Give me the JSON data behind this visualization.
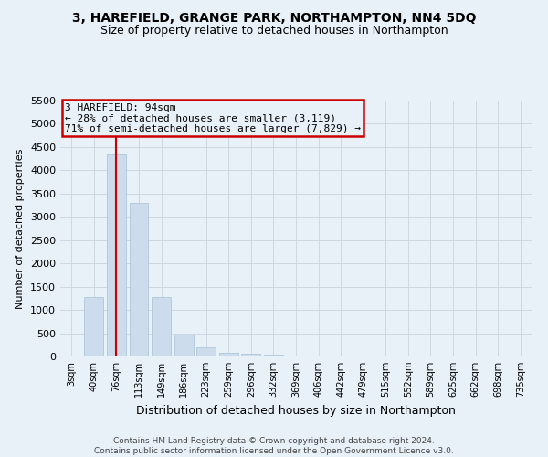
{
  "title": "3, HAREFIELD, GRANGE PARK, NORTHAMPTON, NN4 5DQ",
  "subtitle": "Size of property relative to detached houses in Northampton",
  "xlabel": "Distribution of detached houses by size in Northampton",
  "ylabel": "Number of detached properties",
  "footnote1": "Contains HM Land Registry data © Crown copyright and database right 2024.",
  "footnote2": "Contains public sector information licensed under the Open Government Licence v3.0.",
  "bar_color": "#ccdcec",
  "bar_edge_color": "#a8c0d4",
  "grid_color": "#c8d4e0",
  "background_color": "#e8f0f8",
  "annotation_box_color": "#cc0000",
  "vline_color": "#cc0000",
  "categories": [
    "3sqm",
    "40sqm",
    "76sqm",
    "113sqm",
    "149sqm",
    "186sqm",
    "223sqm",
    "259sqm",
    "296sqm",
    "332sqm",
    "369sqm",
    "406sqm",
    "442sqm",
    "479sqm",
    "515sqm",
    "552sqm",
    "589sqm",
    "625sqm",
    "662sqm",
    "698sqm",
    "735sqm"
  ],
  "values": [
    0,
    1270,
    4350,
    3300,
    1270,
    480,
    190,
    80,
    50,
    30,
    10,
    0,
    0,
    0,
    0,
    0,
    0,
    0,
    0,
    0,
    0
  ],
  "property_bin_index": 2,
  "annotation_line1": "3 HAREFIELD: 94sqm",
  "annotation_line2": "← 28% of detached houses are smaller (3,119)",
  "annotation_line3": "71% of semi-detached houses are larger (7,829) →",
  "ylim": [
    0,
    5500
  ],
  "yticks": [
    0,
    500,
    1000,
    1500,
    2000,
    2500,
    3000,
    3500,
    4000,
    4500,
    5000,
    5500
  ],
  "title_fontsize": 10,
  "subtitle_fontsize": 9,
  "xlabel_fontsize": 9,
  "ylabel_fontsize": 8,
  "xtick_fontsize": 7,
  "ytick_fontsize": 8,
  "footnote_fontsize": 6.5,
  "annotation_fontsize": 8
}
